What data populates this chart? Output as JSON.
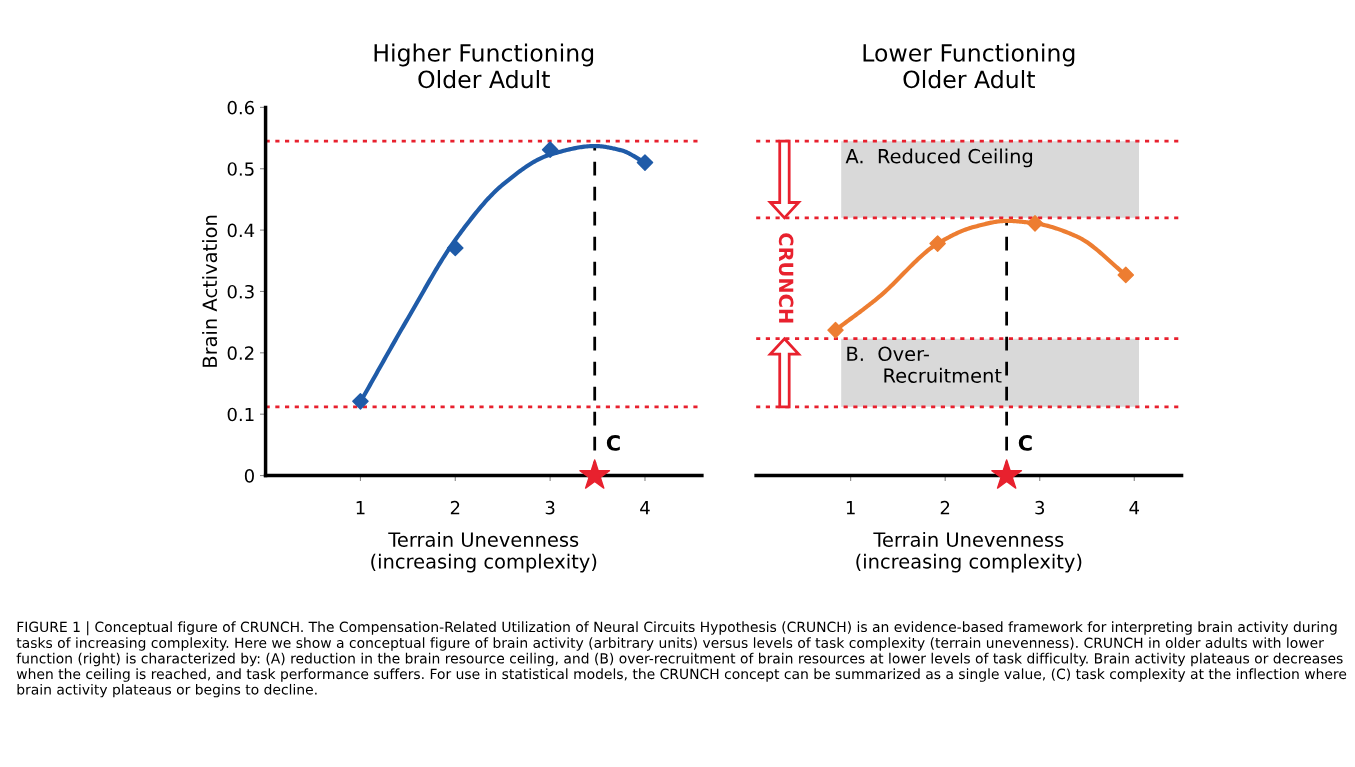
{
  "chart_data": [
    {
      "type": "line",
      "title": "Higher Functioning\nOlder Adult",
      "xlabel": "Terrain Unevenness\n(increasing complexity)",
      "ylabel": "Brain Activation",
      "xlim": [
        0,
        4.6
      ],
      "xticks": [
        1,
        2,
        3,
        4
      ],
      "ylim": [
        0,
        0.6
      ],
      "yticks": [
        0,
        0.1,
        0.2,
        0.3,
        0.4,
        0.5,
        0.6
      ],
      "grid": false,
      "series": [
        {
          "color": "#1f5ba8",
          "marker": "none",
          "x": [
            1,
            1.5,
            2,
            2.5,
            3,
            3.47,
            3.75,
            4
          ],
          "values": [
            0.12,
            0.256,
            0.384,
            0.474,
            0.523,
            0.537,
            0.53,
            0.51
          ]
        },
        {
          "type": "scatter",
          "color": "#1f5ba8",
          "marker": "diamond",
          "x": [
            1,
            2,
            3,
            4
          ],
          "values": [
            0.121,
            0.371,
            0.531,
            0.51
          ]
        },
        {
          "type": "scatter",
          "color": "#e8212e",
          "marker": "star",
          "x": [
            3.47
          ],
          "values": [
            0
          ]
        }
      ],
      "ref_lines": [
        {
          "axis": "y",
          "value": 0.545,
          "color": "#e8212e",
          "line_style": "dotted"
        },
        {
          "axis": "y",
          "value": 0.112,
          "color": "#e8212e",
          "line_style": "dotted"
        },
        {
          "axis": "x",
          "value": 3.47,
          "color": "#000000",
          "line_style": "dashed"
        }
      ],
      "annotations": [
        {
          "text": "C",
          "x": 3.47,
          "y": 0
        }
      ]
    },
    {
      "type": "line",
      "title": "Lower Functioning\nOlder Adult",
      "xlabel": "Terrain Unevenness\n(increasing complexity)",
      "xlim": [
        0,
        4.5
      ],
      "xticks": [
        1,
        2,
        3,
        4
      ],
      "ylim": [
        0,
        0.6
      ],
      "tick_labels": "x",
      "grid": false,
      "series": [
        {
          "color": "#ed7d31",
          "marker": "none",
          "x": [
            0.84,
            1.3,
            1.92,
            2.3,
            2.65,
            2.95,
            3.4,
            3.91
          ],
          "values": [
            0.237,
            0.291,
            0.378,
            0.405,
            0.415,
            0.411,
            0.389,
            0.327
          ]
        },
        {
          "type": "scatter",
          "color": "#ed7d31",
          "marker": "diamond",
          "x": [
            0.84,
            1.92,
            2.95,
            3.91
          ],
          "values": [
            0.237,
            0.378,
            0.411,
            0.327
          ]
        },
        {
          "type": "scatter",
          "color": "#e8212e",
          "marker": "star",
          "x": [
            2.65
          ],
          "values": [
            0
          ]
        }
      ],
      "ref_lines": [
        {
          "axis": "y",
          "value": 0.545,
          "color": "#e8212e",
          "line_style": "dotted"
        },
        {
          "axis": "y",
          "value": 0.42,
          "color": "#e8212e",
          "line_style": "dotted"
        },
        {
          "axis": "y",
          "value": 0.223,
          "color": "#e8212e",
          "line_style": "dotted"
        },
        {
          "axis": "y",
          "value": 0.112,
          "color": "#e8212e",
          "line_style": "dotted"
        },
        {
          "axis": "x",
          "value": 2.65,
          "color": "#000000",
          "line_style": "dashed"
        }
      ],
      "bands": [
        {
          "axis": "y",
          "from": 0.42,
          "to": 0.545,
          "label": "A.  Reduced Ceiling",
          "color": "#d9d9d9"
        },
        {
          "axis": "y",
          "from": 0.112,
          "to": 0.223,
          "label": "B.  Over-\n      Recruitment",
          "color": "#d9d9d9"
        }
      ],
      "annotations": [
        {
          "text": "C",
          "x": 2.65,
          "y": 0
        },
        {
          "text": "CRUNCH",
          "x": 0.3,
          "y": 0.42
        },
        "FIGURE 1 | Conceptual figure of CRUNCH. The Compensation-Related Utilization of Neural Circuits Hypothesis (CRUNCH) is an evidence-based framework for interpreting brain activity during tasks of increasing complexity. Here we show a conceptual figure of brain activity (arbitrary units) versus levels of task complexity (terrain unevenness). CRUNCH in older adults with lower function (right) is characterized by: (A) reduction in the brain resource ceiling, and (B) over-recruitment of brain resources at lower levels of task difficulty. Brain activity plateaus or decreases when the ceiling is reached, and task performance suffers. For use in statistical models, the CRUNCH concept can be summarized as a single value, (C) task complexity at the inflection where brain activity plateaus or begins to decline."
      ]
    }
  ]
}
